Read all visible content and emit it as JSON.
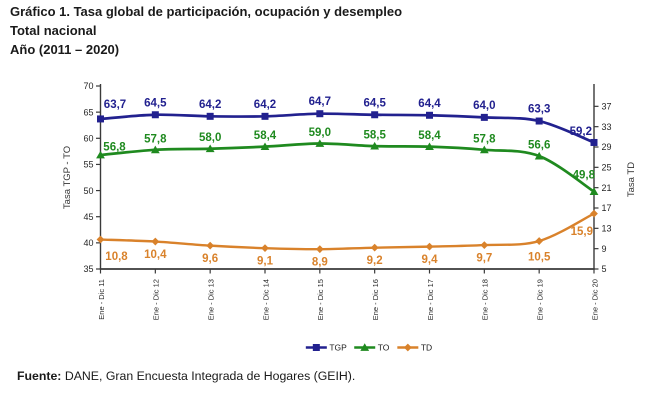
{
  "title": {
    "line1": "Gráfico 1. Tasa global de participación, ocupación y desempleo",
    "line2": "Total nacional",
    "line3": "Año (2011 – 2020)"
  },
  "source_note": {
    "label": "Fuente:",
    "text": "DANE, Gran Encuesta Integrada de Hogares (GEIH)."
  },
  "chart_data": {
    "type": "line",
    "categories": [
      "Ene - Dic 11",
      "Ene - Dic 12",
      "Ene - Dic 13",
      "Ene - Dic 14",
      "Ene - Dic 15",
      "Ene - Dic 16",
      "Ene - Dic 17",
      "Ene - Dic 18",
      "Ene - Dic 19",
      "Ene - Dic 20"
    ],
    "series": [
      {
        "name": "TGP",
        "axis": "left",
        "color": "#22218F",
        "marker": "square",
        "values": [
          63.7,
          64.5,
          64.2,
          64.2,
          64.7,
          64.5,
          64.4,
          64.0,
          63.3,
          59.2
        ],
        "labels": [
          "63,7",
          "64,5",
          "64,2",
          "64,2",
          "64,7",
          "64,5",
          "64,4",
          "64,0",
          "63,3",
          "59,2"
        ],
        "label_position": "above"
      },
      {
        "name": "TO",
        "axis": "left",
        "color": "#1F8A1F",
        "marker": "triangle",
        "values": [
          56.8,
          57.8,
          58.0,
          58.4,
          59.0,
          58.5,
          58.4,
          57.8,
          56.6,
          49.8
        ],
        "labels": [
          "56,8",
          "57,8",
          "58,0",
          "58,4",
          "59,0",
          "58,5",
          "58,4",
          "57,8",
          "56,6",
          "49,8"
        ],
        "label_position": "above"
      },
      {
        "name": "TD",
        "axis": "right",
        "color": "#D9822B",
        "marker": "diamond",
        "values": [
          10.8,
          10.4,
          9.6,
          9.1,
          8.9,
          9.2,
          9.4,
          9.7,
          10.5,
          15.9
        ],
        "labels": [
          "10,8",
          "10,4",
          "9,6",
          "9,1",
          "8,9",
          "9,2",
          "9,4",
          "9,7",
          "10,5",
          "15,9"
        ],
        "label_position": "below"
      }
    ],
    "left_axis": {
      "title": "Tasa TGP - TO",
      "min": 35,
      "max": 70,
      "tick_step": 5,
      "tick_labels": [
        "70",
        "65",
        "60",
        "55",
        "50",
        "45",
        "40",
        "35"
      ]
    },
    "right_axis": {
      "title": "Tasa TD",
      "min": 5,
      "max": 41,
      "tick_step": 4,
      "tick_labels": [
        "37",
        "33",
        "29",
        "25",
        "21",
        "17",
        "13",
        "9",
        "5"
      ]
    },
    "legend": {
      "position": "bottom",
      "items": [
        "TGP",
        "TO",
        "TD"
      ]
    },
    "grid": false,
    "smoothed_lines": true
  }
}
